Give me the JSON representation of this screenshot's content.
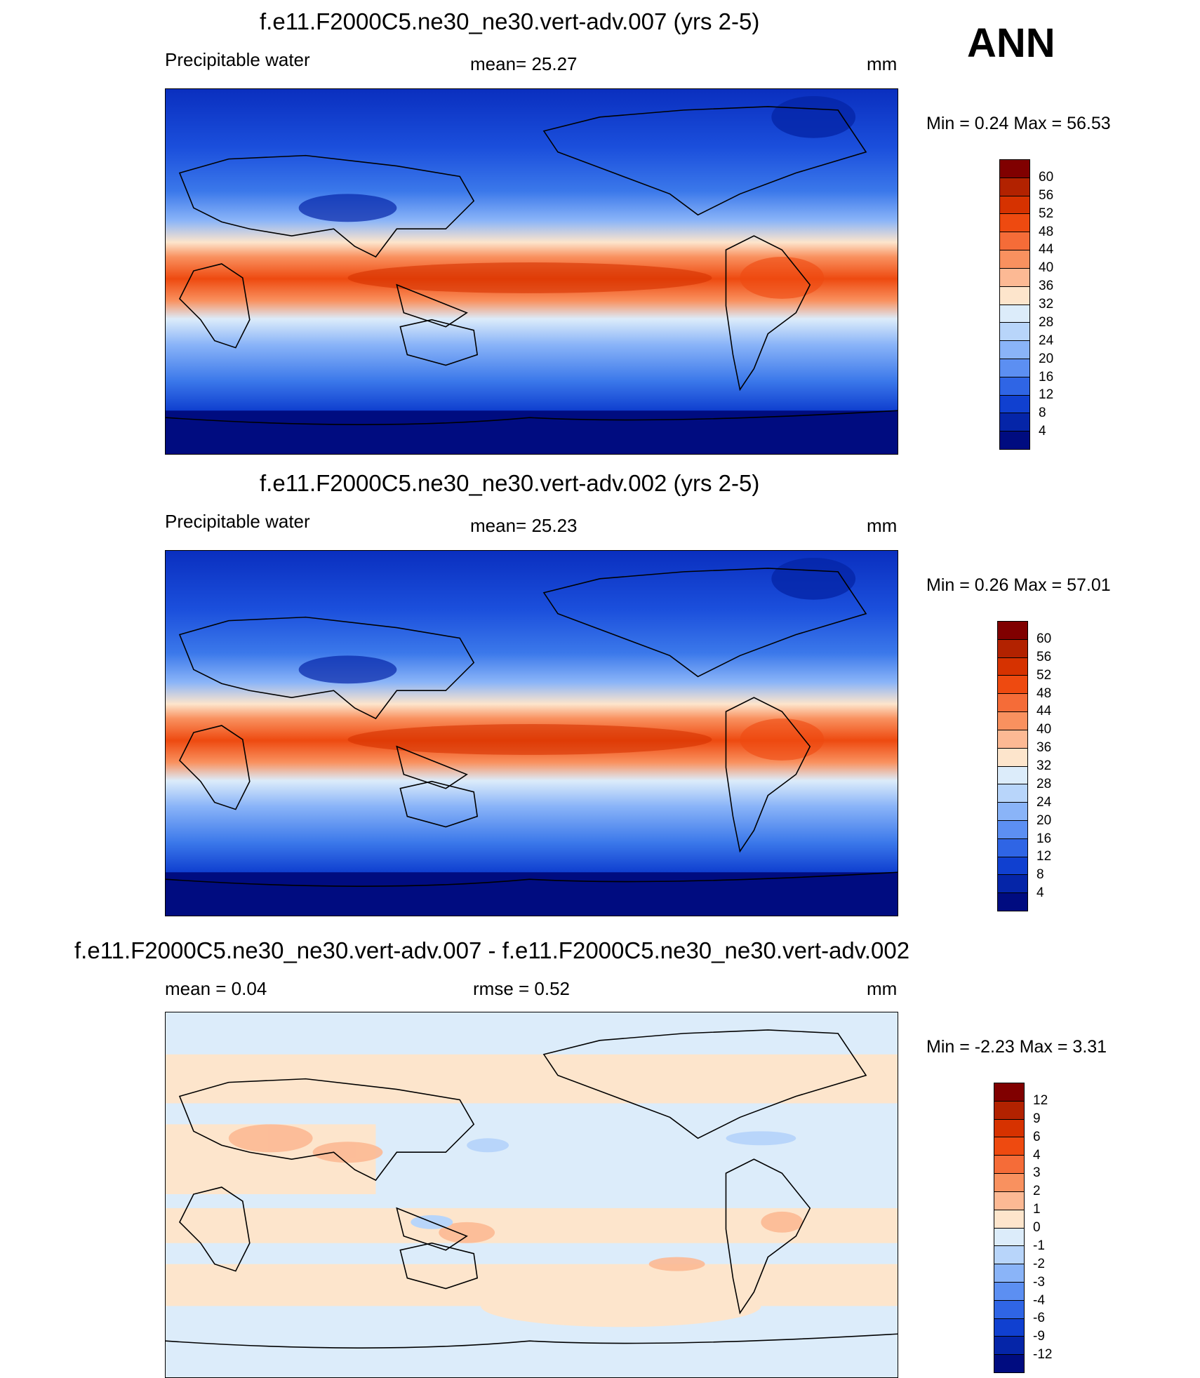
{
  "season": "ANN",
  "panels": [
    {
      "title": "f.e11.F2000C5.ne30_ne30.vert-adv.007 (yrs 2-5)",
      "left_label": "Precipitable water",
      "center_label": "mean=  25.27",
      "right_label": "mm",
      "minmax": "Min =    0.24 Max =  56.53",
      "colorbar_levels": [
        "60",
        "56",
        "52",
        "48",
        "44",
        "40",
        "36",
        "32",
        "28",
        "24",
        "20",
        "16",
        "12",
        "8",
        "4"
      ]
    },
    {
      "title": "f.e11.F2000C5.ne30_ne30.vert-adv.002 (yrs 2-5)",
      "left_label": "Precipitable water",
      "center_label": "mean=  25.23",
      "right_label": "mm",
      "minmax": "Min =    0.26 Max =  57.01",
      "colorbar_levels": [
        "60",
        "56",
        "52",
        "48",
        "44",
        "40",
        "36",
        "32",
        "28",
        "24",
        "20",
        "16",
        "12",
        "8",
        "4"
      ]
    },
    {
      "title": "f.e11.F2000C5.ne30_ne30.vert-adv.007 - f.e11.F2000C5.ne30_ne30.vert-adv.002",
      "left_label": "mean =    0.04",
      "center_label": "rmse =    0.52",
      "right_label": "mm",
      "minmax": "Min =  -2.23 Max =    3.31",
      "colorbar_levels": [
        "12",
        "9",
        "6",
        "4",
        "3",
        "2",
        "1",
        "0",
        "-1",
        "-2",
        "-3",
        "-4",
        "-6",
        "-9",
        "-12"
      ]
    }
  ],
  "colors": {
    "abs_scale": [
      "#800000",
      "#b22200",
      "#d63200",
      "#ee4a10",
      "#f56c38",
      "#f9915f",
      "#fcb994",
      "#fde5cc",
      "#dcecfa",
      "#b8d5fa",
      "#8ab4f8",
      "#5c8ff2",
      "#2f65e5",
      "#1040d0",
      "#0525a8",
      "#000c80"
    ],
    "diff_scale": [
      "#800000",
      "#b22200",
      "#d63200",
      "#ee4a10",
      "#f56c38",
      "#f9915f",
      "#fcb994",
      "#fde5cc",
      "#dcecfa",
      "#b8d5fa",
      "#8ab4f8",
      "#5c8ff2",
      "#2f65e5",
      "#1040d0",
      "#0525a8",
      "#000c80"
    ]
  }
}
